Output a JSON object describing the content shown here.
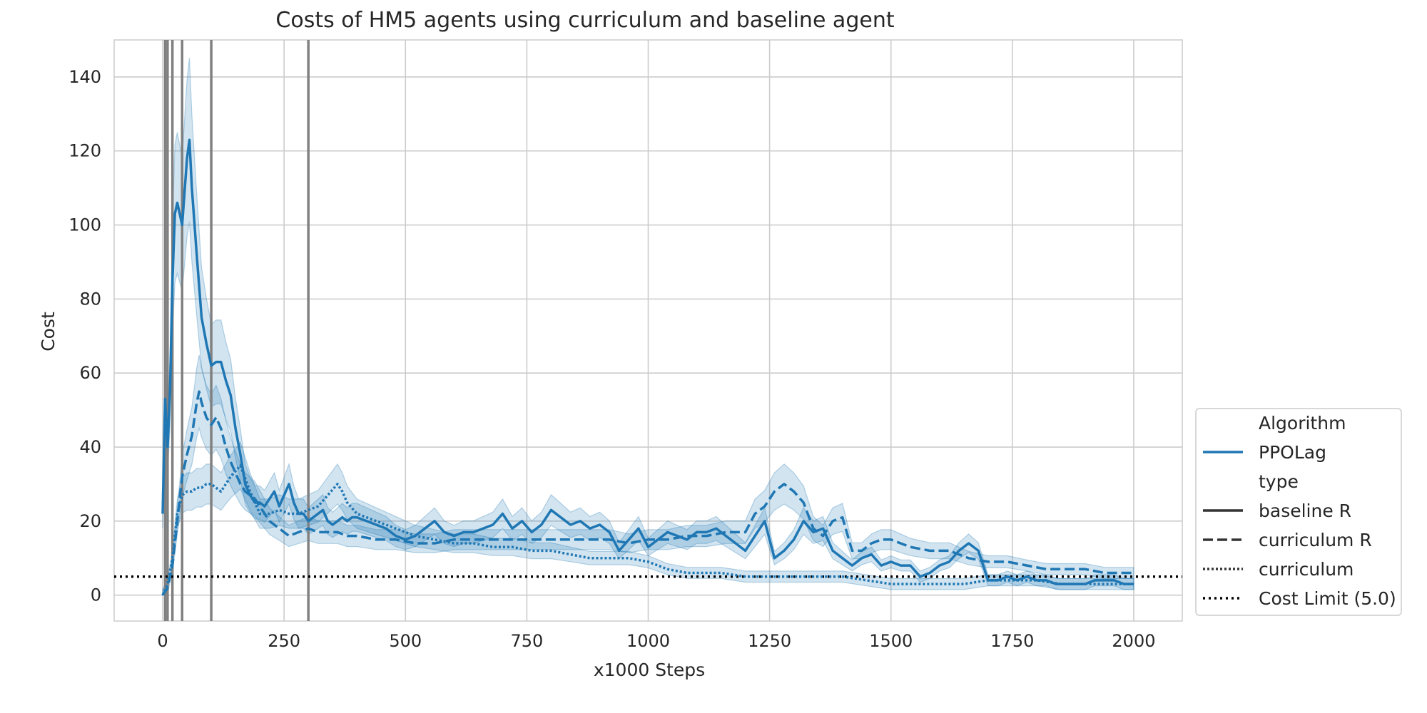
{
  "chart_data": {
    "type": "line",
    "title": "Costs of HM5 agents using curriculum and baseline agent",
    "xlabel": "x1000 Steps",
    "ylabel": "Cost",
    "xlim": [
      -100,
      2100
    ],
    "ylim": [
      -7,
      150
    ],
    "xticks": [
      0,
      250,
      500,
      750,
      1000,
      1250,
      1500,
      1750,
      2000
    ],
    "yticks": [
      0,
      20,
      40,
      60,
      80,
      100,
      120,
      140
    ],
    "grid": true,
    "legend_position": "lower-right outside",
    "color": "#1f77b4",
    "vertical_markers": [
      5,
      10,
      20,
      40,
      100,
      300
    ],
    "cost_limit": 5.0,
    "legend": {
      "algorithm_title": "Algorithm",
      "algorithm_entry": "PPOLag",
      "type_title": "type",
      "entries": [
        "baseline R",
        "curriculum R",
        "curriculum",
        "Cost Limit (5.0)"
      ]
    },
    "series": [
      {
        "name": "baseline R",
        "style": "solid",
        "x": [
          0,
          5,
          10,
          15,
          20,
          25,
          30,
          40,
          50,
          55,
          60,
          70,
          80,
          90,
          100,
          110,
          120,
          130,
          140,
          150,
          160,
          170,
          180,
          190,
          200,
          210,
          220,
          230,
          240,
          250,
          260,
          270,
          280,
          290,
          300,
          310,
          320,
          330,
          340,
          350,
          360,
          370,
          380,
          390,
          400,
          420,
          440,
          460,
          480,
          500,
          520,
          540,
          560,
          580,
          600,
          620,
          640,
          660,
          680,
          700,
          720,
          740,
          760,
          780,
          800,
          820,
          840,
          860,
          880,
          900,
          920,
          940,
          960,
          980,
          1000,
          1020,
          1040,
          1060,
          1080,
          1100,
          1120,
          1140,
          1160,
          1180,
          1200,
          1220,
          1240,
          1260,
          1280,
          1300,
          1320,
          1340,
          1360,
          1380,
          1400,
          1420,
          1440,
          1460,
          1480,
          1500,
          1520,
          1540,
          1560,
          1580,
          1600,
          1620,
          1640,
          1660,
          1680,
          1700,
          1720,
          1740,
          1760,
          1780,
          1800,
          1820,
          1840,
          1860,
          1880,
          1900,
          1920,
          1940,
          1960,
          1980,
          2000
        ],
        "y": [
          22,
          53,
          40,
          55,
          85,
          103,
          106,
          100,
          118,
          123,
          110,
          92,
          75,
          68,
          62,
          63,
          63,
          58,
          54,
          45,
          38,
          30,
          27,
          25,
          25,
          24,
          26,
          28,
          24,
          27,
          30,
          25,
          22,
          22,
          20,
          21,
          22,
          23,
          20,
          19,
          20,
          21,
          20,
          21,
          21,
          20,
          19,
          18,
          16,
          15,
          16,
          18,
          20,
          17,
          16,
          17,
          17,
          18,
          19,
          22,
          18,
          20,
          17,
          19,
          23,
          21,
          19,
          20,
          18,
          19,
          17,
          12,
          15,
          18,
          13,
          15,
          17,
          16,
          15,
          17,
          17,
          18,
          16,
          14,
          12,
          16,
          20,
          10,
          12,
          15,
          20,
          17,
          18,
          12,
          10,
          8,
          10,
          11,
          8,
          9,
          8,
          8,
          5,
          6,
          8,
          9,
          12,
          14,
          12,
          4,
          4,
          5,
          4,
          5,
          4,
          4,
          3,
          3,
          3,
          3,
          4,
          4,
          4,
          3,
          3
        ]
      },
      {
        "name": "curriculum R",
        "style": "dashed",
        "x": [
          0,
          10,
          20,
          30,
          40,
          50,
          60,
          70,
          75,
          80,
          90,
          100,
          110,
          120,
          130,
          140,
          150,
          160,
          170,
          180,
          190,
          200,
          220,
          240,
          260,
          280,
          300,
          320,
          340,
          360,
          380,
          400,
          440,
          480,
          520,
          560,
          600,
          640,
          680,
          720,
          760,
          800,
          840,
          880,
          920,
          960,
          1000,
          1040,
          1080,
          1120,
          1160,
          1200,
          1220,
          1240,
          1260,
          1280,
          1300,
          1320,
          1340,
          1360,
          1380,
          1400,
          1420,
          1440,
          1460,
          1480,
          1500,
          1540,
          1580,
          1620,
          1660,
          1700,
          1740,
          1780,
          1820,
          1860,
          1900,
          1940,
          1980,
          2000
        ],
        "y": [
          0,
          2,
          8,
          20,
          32,
          38,
          43,
          52,
          55,
          52,
          48,
          46,
          48,
          45,
          40,
          36,
          33,
          30,
          28,
          27,
          26,
          24,
          20,
          18,
          16,
          17,
          18,
          17,
          17,
          17,
          16,
          16,
          15,
          15,
          14,
          14,
          15,
          15,
          15,
          15,
          15,
          15,
          15,
          15,
          15,
          14,
          15,
          15,
          16,
          16,
          17,
          17,
          22,
          24,
          28,
          30,
          28,
          25,
          18,
          16,
          20,
          21,
          12,
          12,
          14,
          15,
          15,
          13,
          12,
          12,
          10,
          9,
          9,
          8,
          7,
          7,
          7,
          6,
          6,
          6
        ]
      },
      {
        "name": "curriculum",
        "style": "dotted",
        "x": [
          0,
          10,
          20,
          30,
          40,
          50,
          60,
          70,
          80,
          90,
          100,
          120,
          140,
          160,
          180,
          200,
          220,
          240,
          260,
          280,
          300,
          320,
          340,
          360,
          370,
          380,
          400,
          440,
          480,
          520,
          560,
          600,
          640,
          680,
          720,
          760,
          800,
          840,
          880,
          920,
          960,
          1000,
          1040,
          1080,
          1100,
          1150,
          1200,
          1250,
          1300,
          1350,
          1400,
          1450,
          1500,
          1550,
          1600,
          1650,
          1700,
          1750,
          1800,
          1850,
          1900,
          1950,
          2000
        ],
        "y": [
          0,
          3,
          10,
          22,
          27,
          28,
          28,
          29,
          29,
          30,
          30,
          28,
          32,
          35,
          28,
          22,
          22,
          23,
          22,
          22,
          23,
          24,
          27,
          30,
          28,
          25,
          22,
          20,
          18,
          16,
          15,
          14,
          14,
          13,
          13,
          12,
          12,
          11,
          10,
          10,
          10,
          9,
          7,
          6,
          6,
          6,
          5,
          5,
          5,
          5,
          5,
          4,
          3,
          3,
          3,
          3,
          4,
          4,
          4,
          3,
          3,
          3,
          3
        ]
      }
    ]
  }
}
